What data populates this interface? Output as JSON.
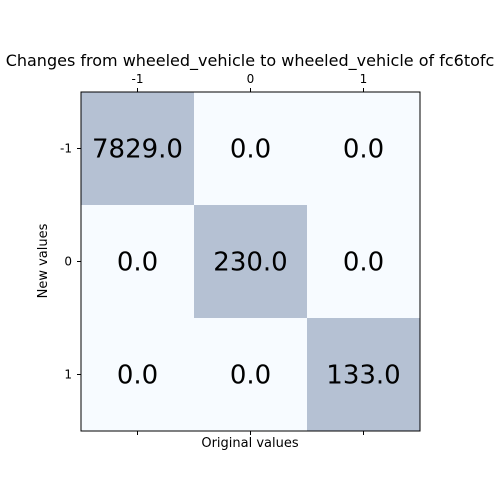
{
  "chart_data": {
    "type": "heatmap",
    "title": "Changes from wheeled_vehicle to wheeled_vehicle of fc6tofc",
    "xlabel": "Original values",
    "ylabel": "New values",
    "x_categories": [
      "-1",
      "0",
      "1"
    ],
    "y_categories": [
      "-1",
      "0",
      "1"
    ],
    "values": [
      [
        7829.0,
        0.0,
        0.0
      ],
      [
        0.0,
        230.0,
        0.0
      ],
      [
        0.0,
        0.0,
        133.0
      ]
    ],
    "value_labels": [
      [
        "7829.0",
        "0.0",
        "0.0"
      ],
      [
        "0.0",
        "230.0",
        "0.0"
      ],
      [
        "0.0",
        "0.0",
        "133.0"
      ]
    ],
    "x_ticks_position": "top",
    "grid": false,
    "colors": {
      "low": "#f7fbff",
      "high": "#b5c1d3"
    }
  }
}
